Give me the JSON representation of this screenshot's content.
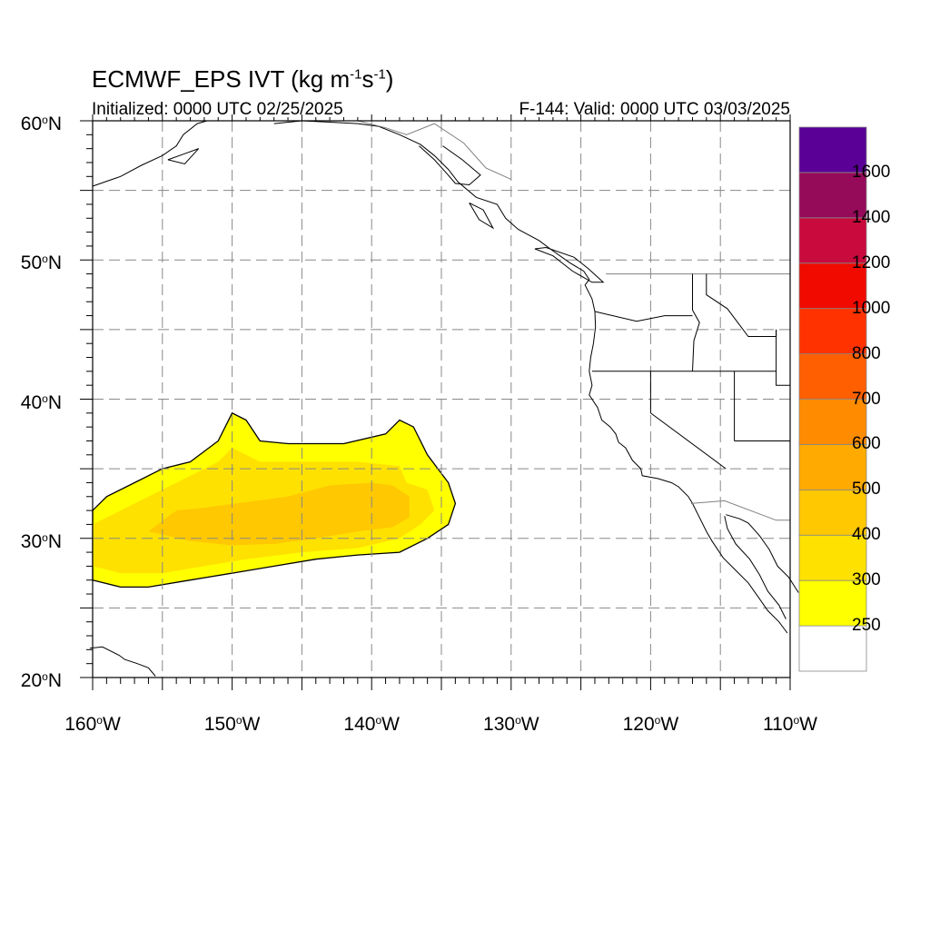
{
  "header": {
    "title_main": "ECMWF_EPS IVT (kg m",
    "title_exp1": "-1",
    "title_mid": "s",
    "title_exp2": "-1",
    "title_end": ")",
    "initialized": "Initialized: 0000 UTC 02/25/2025",
    "valid": "F-144: Valid: 0000 UTC 03/03/2025"
  },
  "map": {
    "lon_range": [
      -160,
      -110
    ],
    "lat_range": [
      20,
      60
    ],
    "lat_labels": [
      {
        "value": 60,
        "text": "60",
        "hemi": "N"
      },
      {
        "value": 50,
        "text": "50",
        "hemi": "N"
      },
      {
        "value": 40,
        "text": "40",
        "hemi": "N"
      },
      {
        "value": 30,
        "text": "30",
        "hemi": "N"
      },
      {
        "value": 20,
        "text": "20",
        "hemi": "N"
      }
    ],
    "lon_labels": [
      {
        "value": -160,
        "text": "160",
        "hemi": "W"
      },
      {
        "value": -150,
        "text": "150",
        "hemi": "W"
      },
      {
        "value": -140,
        "text": "140",
        "hemi": "W"
      },
      {
        "value": -130,
        "text": "130",
        "hemi": "W"
      },
      {
        "value": -120,
        "text": "120",
        "hemi": "W"
      },
      {
        "value": -110,
        "text": "110",
        "hemi": "W"
      }
    ],
    "degree_symbol": "o",
    "gridlines": "dashed",
    "coastline_color": "#000000",
    "border_color": "#808080"
  },
  "colorbar": {
    "position": "right",
    "levels": [
      {
        "label": "",
        "color": "#ffffff"
      },
      {
        "label": "250",
        "color": "#ffff00"
      },
      {
        "label": "300",
        "color": "#ffe100"
      },
      {
        "label": "400",
        "color": "#ffc800"
      },
      {
        "label": "500",
        "color": "#ffaa00"
      },
      {
        "label": "600",
        "color": "#ff8c00"
      },
      {
        "label": "700",
        "color": "#ff5f00"
      },
      {
        "label": "800",
        "color": "#ff3200"
      },
      {
        "label": "1000",
        "color": "#f00a00"
      },
      {
        "label": "1200",
        "color": "#c80a3c"
      },
      {
        "label": "1400",
        "color": "#960a5a"
      },
      {
        "label": "1600",
        "color": "#5a0096"
      }
    ]
  },
  "ivt_field": {
    "description_levels": "250-300 (yellow), 300-400 (gold), 400-500 (amber core)",
    "region_250": [
      [
        -160,
        32
      ],
      [
        -159,
        33
      ],
      [
        -157,
        34
      ],
      [
        -155,
        35
      ],
      [
        -153,
        35.5
      ],
      [
        -151,
        37
      ],
      [
        -150,
        39
      ],
      [
        -149,
        38.5
      ],
      [
        -148,
        37
      ],
      [
        -146,
        36.8
      ],
      [
        -142,
        36.8
      ],
      [
        -139,
        37.5
      ],
      [
        -138,
        38.5
      ],
      [
        -137,
        38
      ],
      [
        -136,
        36
      ],
      [
        -134.5,
        34
      ],
      [
        -134,
        32.5
      ],
      [
        -134.5,
        31
      ],
      [
        -136,
        30
      ],
      [
        -138,
        29
      ],
      [
        -141,
        28.8
      ],
      [
        -144,
        28.5
      ],
      [
        -147,
        28
      ],
      [
        -150,
        27.5
      ],
      [
        -153,
        27
      ],
      [
        -156,
        26.5
      ],
      [
        -158,
        26.5
      ],
      [
        -160,
        27
      ]
    ],
    "region_300": [
      [
        -160,
        31
      ],
      [
        -158,
        32
      ],
      [
        -156,
        33
      ],
      [
        -154,
        34
      ],
      [
        -151,
        35.5
      ],
      [
        -150,
        36.5
      ],
      [
        -148,
        35.5
      ],
      [
        -145,
        35.5
      ],
      [
        -141,
        35.5
      ],
      [
        -138,
        35.2
      ],
      [
        -137.5,
        34
      ],
      [
        -136,
        33.5
      ],
      [
        -135.5,
        32
      ],
      [
        -136.5,
        31
      ],
      [
        -138,
        30
      ],
      [
        -141,
        29.3
      ],
      [
        -145,
        29
      ],
      [
        -149,
        28.5
      ],
      [
        -152,
        28
      ],
      [
        -155,
        27.5
      ],
      [
        -158,
        27.5
      ],
      [
        -160,
        28
      ]
    ],
    "region_400": [
      [
        -156,
        30.5
      ],
      [
        -154,
        32
      ],
      [
        -152,
        32.2
      ],
      [
        -149,
        32.6
      ],
      [
        -146,
        33
      ],
      [
        -143,
        33.8
      ],
      [
        -140,
        34
      ],
      [
        -138.5,
        33.8
      ],
      [
        -137.3,
        33
      ],
      [
        -137.3,
        31.5
      ],
      [
        -138.5,
        30.8
      ],
      [
        -141,
        30.5
      ],
      [
        -144,
        30
      ],
      [
        -147,
        29.6
      ],
      [
        -150,
        29.5
      ],
      [
        -153,
        29.8
      ]
    ]
  }
}
